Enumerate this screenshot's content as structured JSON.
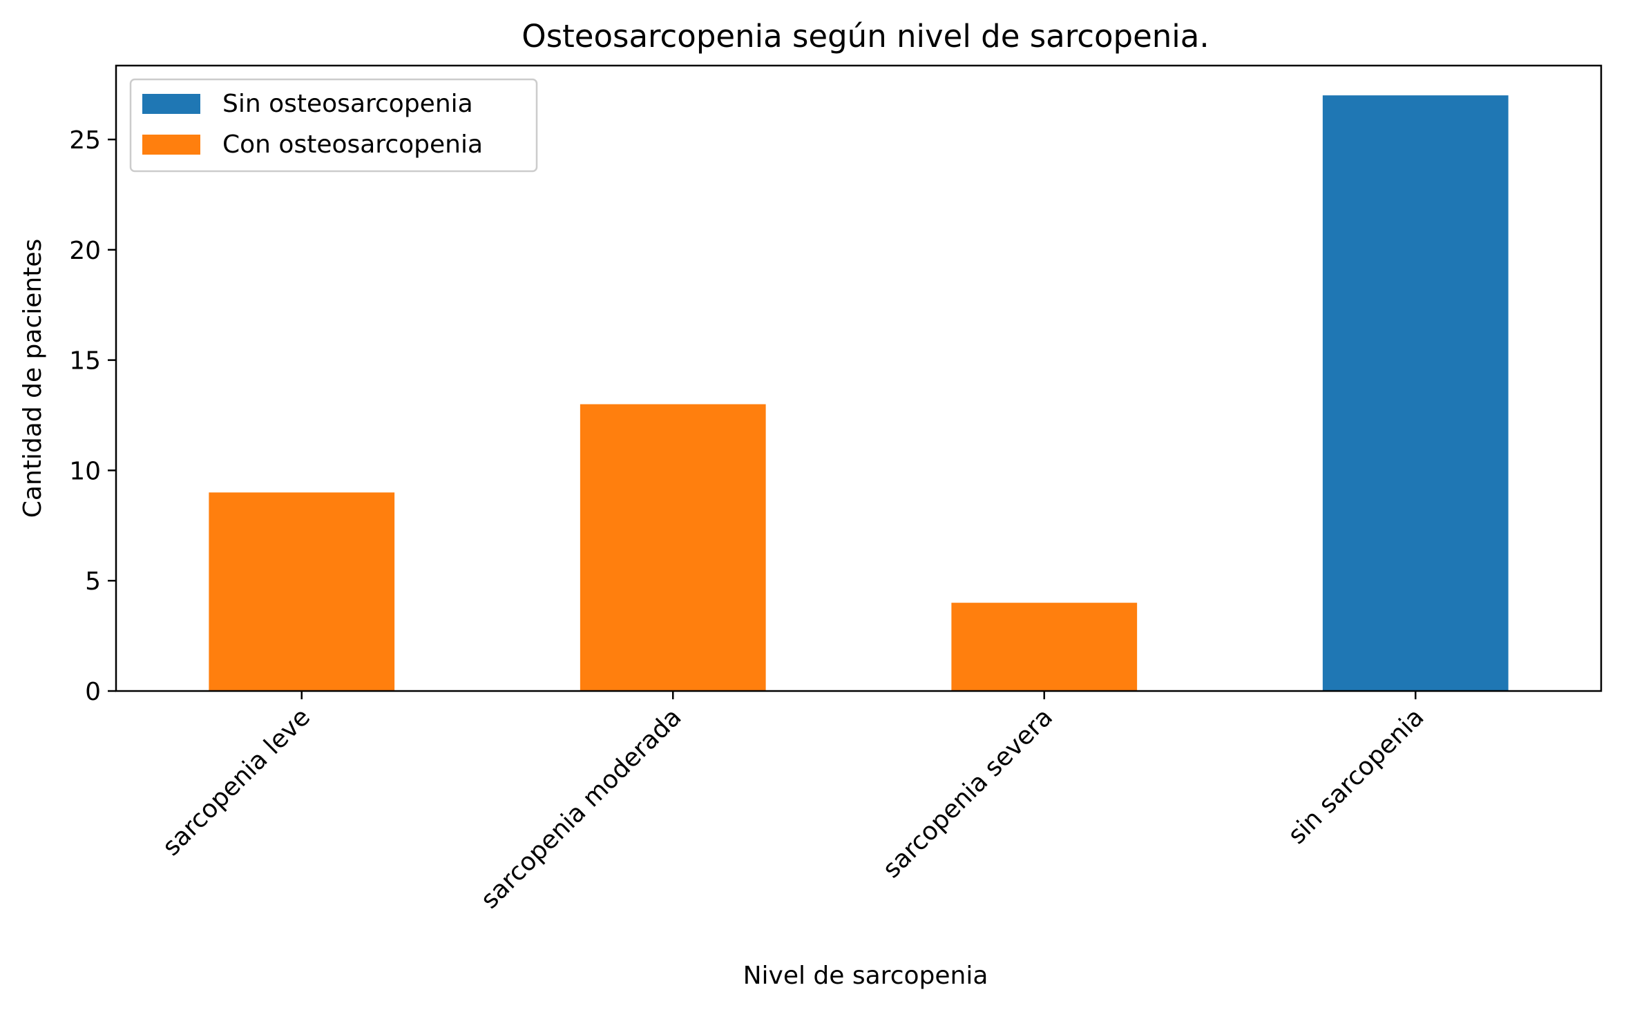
{
  "chart_data": {
    "type": "bar",
    "stacked": true,
    "title": "Osteosarcopenia según nivel de sarcopenia.",
    "xlabel": "Nivel de sarcopenia",
    "ylabel": "Cantidad de pacientes",
    "categories": [
      "sarcopenia leve",
      "sarcopenia moderada",
      "sarcopenia severa",
      "sin sarcopenia"
    ],
    "series": [
      {
        "name": "Sin osteosarcopenia",
        "color": "#1f77b4",
        "values": [
          0,
          0,
          0,
          27
        ]
      },
      {
        "name": "Con osteosarcopenia",
        "color": "#ff7f0e",
        "values": [
          9,
          13,
          4,
          0
        ]
      }
    ],
    "ylim": [
      0,
      28.35
    ],
    "yticks": [
      0,
      5,
      10,
      15,
      20,
      25
    ],
    "legend": "top-left",
    "grid": false
  }
}
